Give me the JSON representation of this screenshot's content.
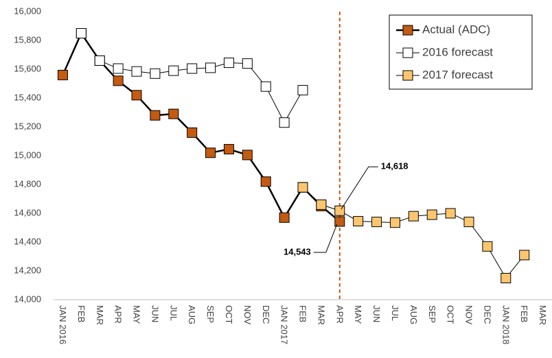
{
  "chart_data": {
    "type": "line",
    "categories": [
      "JAN 2016",
      "FEB",
      "MAR",
      "APR",
      "MAY",
      "JUN",
      "JUL",
      "AUG",
      "SEP",
      "OCT",
      "NOV",
      "DEC",
      "JAN 2017",
      "FEB",
      "MAR",
      "APR",
      "MAY",
      "JUN",
      "JUL",
      "AUG",
      "SEP",
      "OCT",
      "NOV",
      "DEC",
      "JAN 2018",
      "FEB",
      "MAR"
    ],
    "series": [
      {
        "name": "Actual (ADC)",
        "color": "#c55a11",
        "values": [
          15560,
          15850,
          15660,
          15520,
          15420,
          15280,
          15290,
          15160,
          15020,
          15045,
          15005,
          14820,
          14570,
          14780,
          14650,
          14543,
          null,
          null,
          null,
          null,
          null,
          null,
          null,
          null,
          null,
          null,
          null
        ],
        "value_labels": [
          null,
          null,
          null,
          null,
          null,
          null,
          null,
          null,
          null,
          null,
          null,
          null,
          null,
          null,
          null,
          "14,543",
          null,
          null,
          null,
          null,
          null,
          null,
          null,
          null,
          null,
          null,
          null
        ]
      },
      {
        "name": "2016 forecast",
        "color": "#ffffff",
        "values": [
          null,
          15850,
          15660,
          15605,
          15585,
          15570,
          15590,
          15605,
          15610,
          15645,
          15640,
          15480,
          15230,
          15455,
          null,
          null,
          null,
          null,
          null,
          null,
          null,
          null,
          null,
          null,
          null,
          null,
          null
        ]
      },
      {
        "name": "2017 forecast",
        "color": "#fdc66e",
        "values": [
          null,
          null,
          null,
          null,
          null,
          null,
          null,
          null,
          null,
          null,
          null,
          null,
          null,
          14780,
          14660,
          14618,
          14545,
          14540,
          14535,
          14580,
          14590,
          14600,
          14540,
          14370,
          14150,
          14310,
          null
        ],
        "value_labels": [
          null,
          null,
          null,
          null,
          null,
          null,
          null,
          null,
          null,
          null,
          null,
          null,
          null,
          null,
          null,
          "14,618",
          null,
          null,
          null,
          null,
          null,
          null,
          null,
          null,
          null,
          null,
          null
        ]
      }
    ],
    "ylim": [
      14000,
      16000
    ],
    "yticks": [
      {
        "value": 14000,
        "label": "14,000"
      },
      {
        "value": 14200,
        "label": "14,200"
      },
      {
        "value": 14400,
        "label": "14,400"
      },
      {
        "value": 14600,
        "label": "14,600"
      },
      {
        "value": 14800,
        "label": "14,800"
      },
      {
        "value": 15000,
        "label": "15,000"
      },
      {
        "value": 15200,
        "label": "15,200"
      },
      {
        "value": 15400,
        "label": "15,400"
      },
      {
        "value": 15600,
        "label": "15,600"
      },
      {
        "value": 15800,
        "label": "15,800"
      },
      {
        "value": 16000,
        "label": "16,000"
      }
    ],
    "grid": false,
    "legend": "top-right"
  }
}
